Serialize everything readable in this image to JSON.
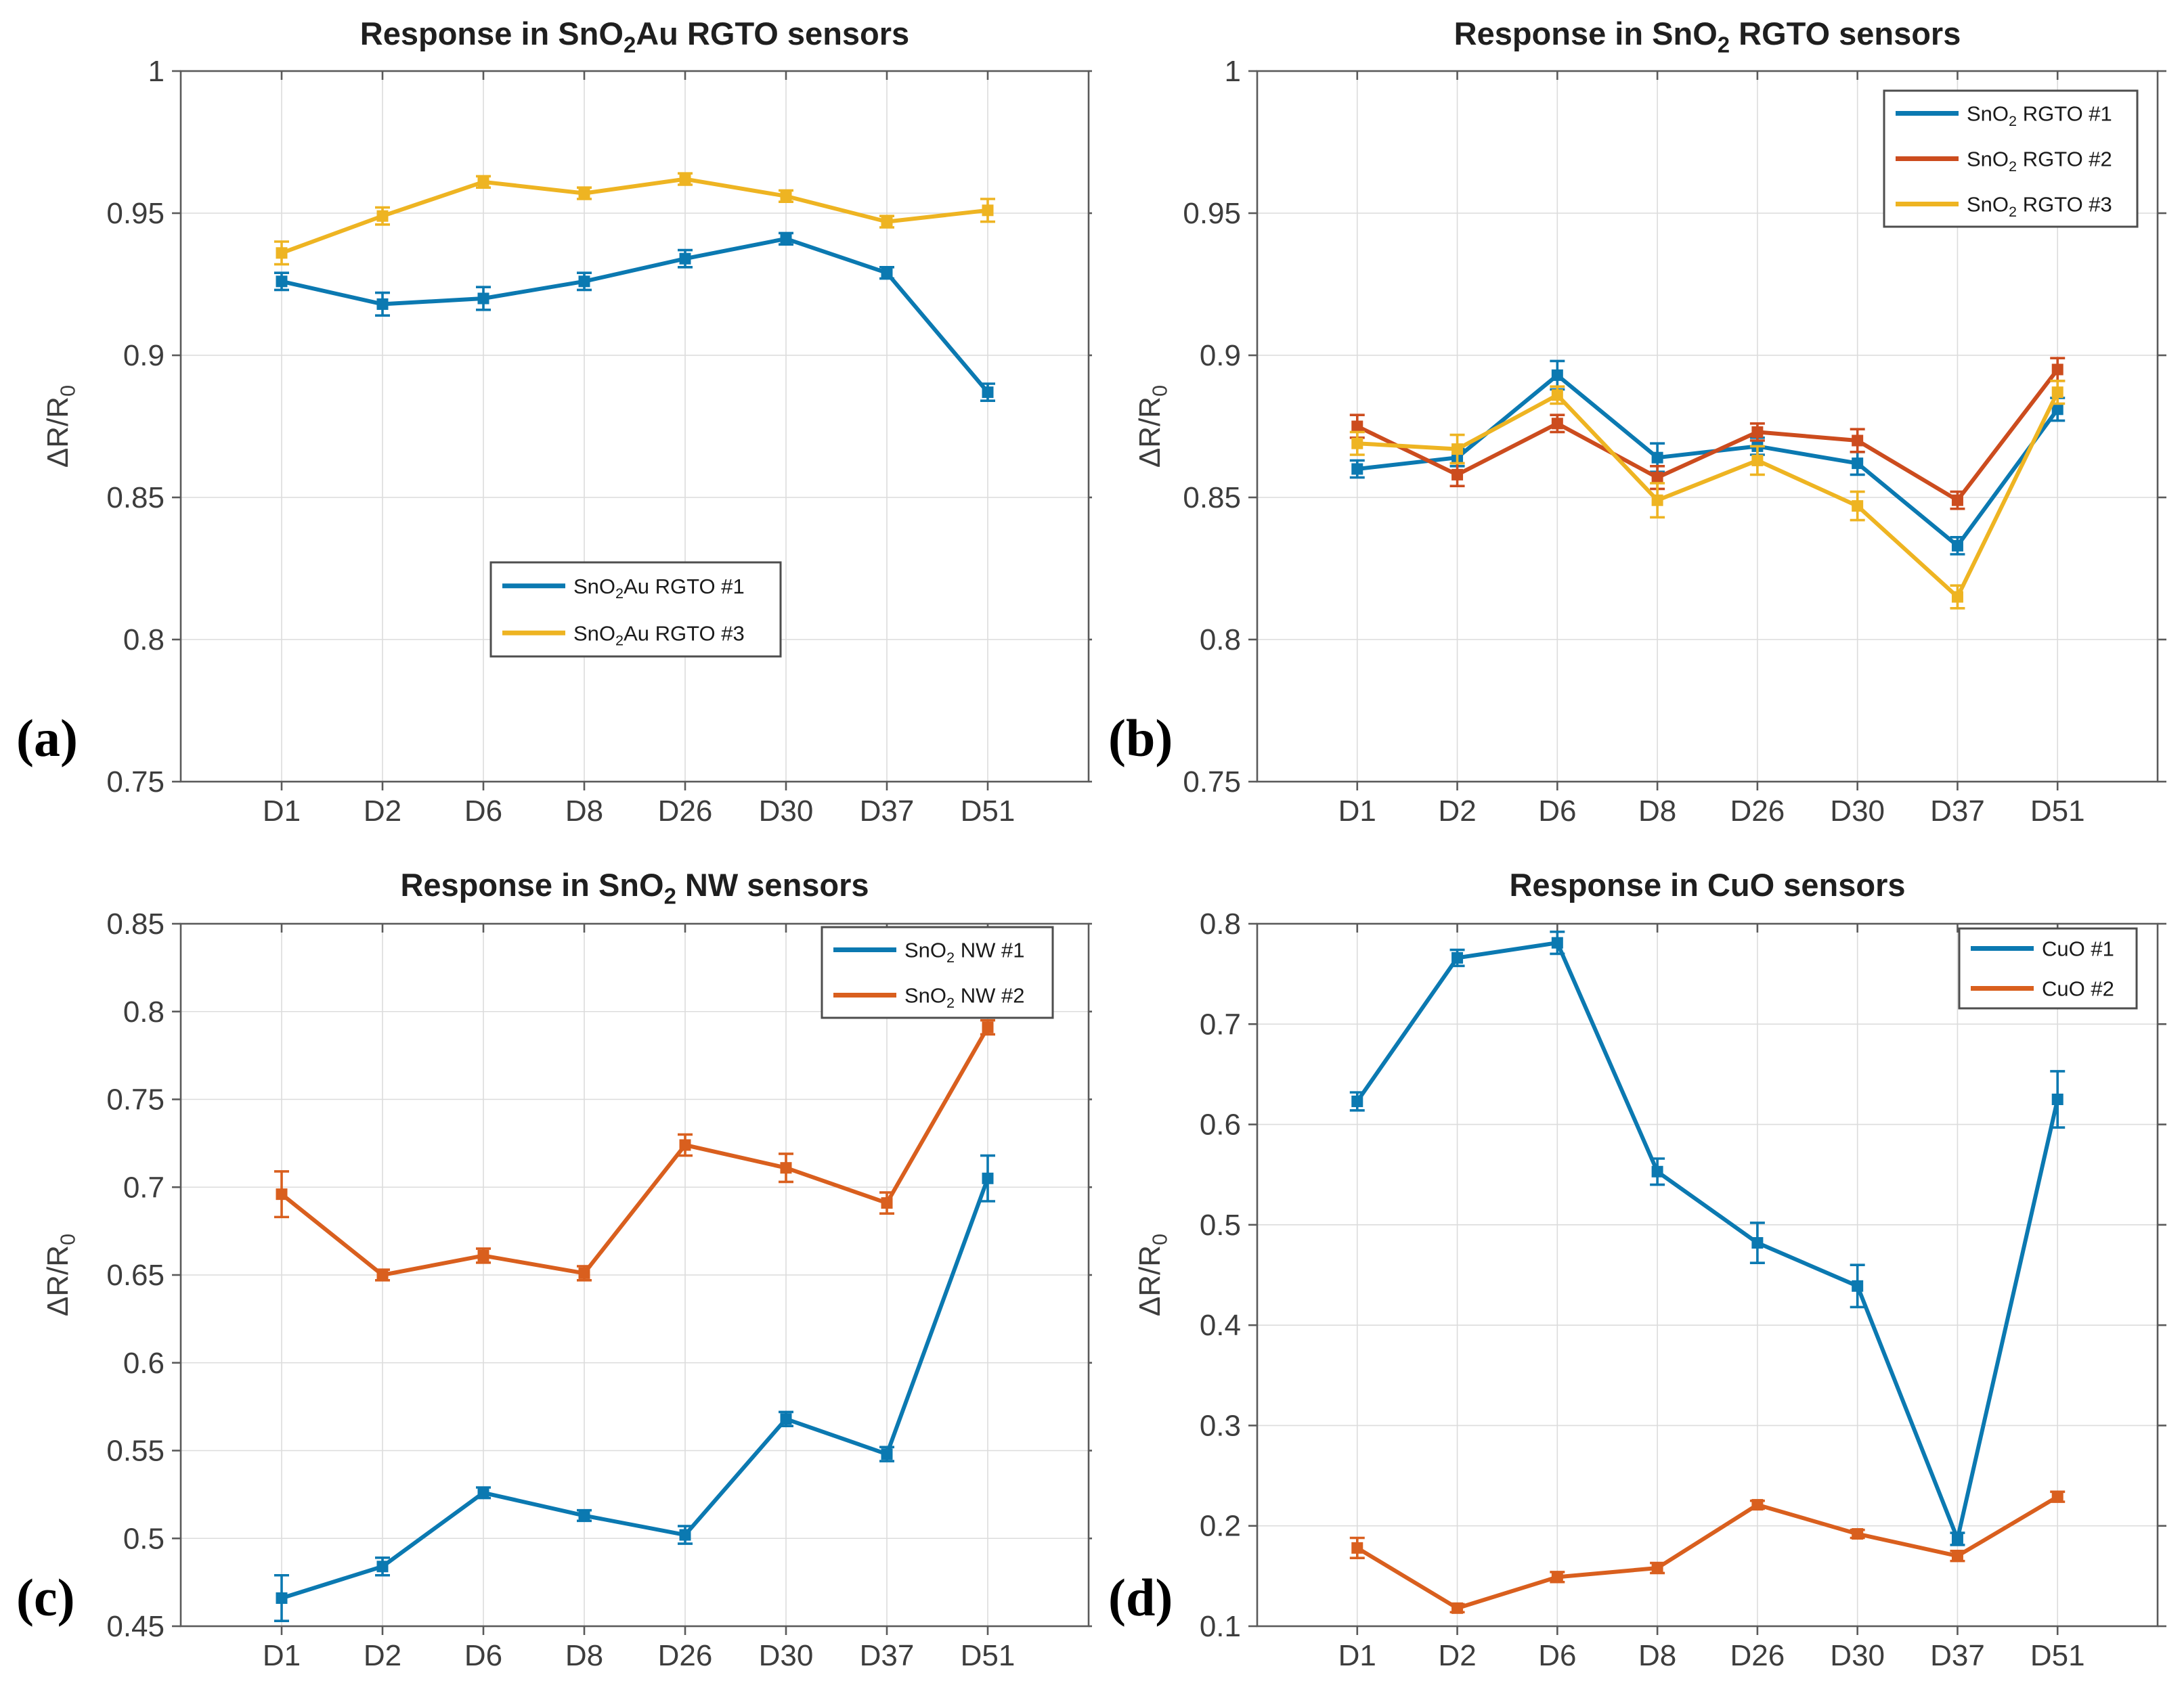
{
  "figure": {
    "background": "#ffffff",
    "text_color": "#3d3d3d",
    "title_color": "#1f1f1f",
    "grid_color": "#dcdcdc",
    "axis_color": "#5a5a5a",
    "legend_border_color": "#4d4d4d"
  },
  "chart_data": [
    {
      "id": "a",
      "panel_label": "(a)",
      "type": "line",
      "title": "Response in SnO₂Au RGTO sensors",
      "title_parts": [
        {
          "t": "Response in SnO"
        },
        {
          "t": "2",
          "sub": true
        },
        {
          "t": "Au RGTO sensors"
        }
      ],
      "ylabel": "ΔR/R₀",
      "ylabel_parts": [
        {
          "t": "ΔR/R"
        },
        {
          "t": "0",
          "sub": true
        }
      ],
      "categories": [
        "D1",
        "D2",
        "D6",
        "D8",
        "D26",
        "D30",
        "D37",
        "D51"
      ],
      "ylim": [
        0.75,
        1
      ],
      "yticks": [
        {
          "v": 0.75,
          "label": "0.75"
        },
        {
          "v": 0.8,
          "label": "0.8"
        },
        {
          "v": 0.85,
          "label": "0.85"
        },
        {
          "v": 0.9,
          "label": "0.9"
        },
        {
          "v": 0.95,
          "label": "0.95"
        },
        {
          "v": 1,
          "label": "1"
        }
      ],
      "grid": true,
      "legend_position": "center-bottom",
      "series": [
        {
          "name": "SnO₂Au RGTO #1",
          "name_parts": [
            {
              "t": "SnO"
            },
            {
              "t": "2",
              "sub": true
            },
            {
              "t": "Au RGTO #1"
            }
          ],
          "color": "#0b79b1",
          "values": [
            0.926,
            0.918,
            0.92,
            0.926,
            0.934,
            0.941,
            0.929,
            0.887
          ],
          "errors": [
            0.003,
            0.004,
            0.004,
            0.003,
            0.003,
            0.002,
            0.002,
            0.003
          ]
        },
        {
          "name": "SnO₂Au RGTO #3",
          "name_parts": [
            {
              "t": "SnO"
            },
            {
              "t": "2",
              "sub": true
            },
            {
              "t": "Au RGTO #3"
            }
          ],
          "color": "#eeb422",
          "values": [
            0.936,
            0.949,
            0.961,
            0.957,
            0.962,
            0.956,
            0.947,
            0.951
          ],
          "errors": [
            0.004,
            0.003,
            0.002,
            0.002,
            0.002,
            0.002,
            0.002,
            0.004
          ]
        }
      ]
    },
    {
      "id": "b",
      "panel_label": "(b)",
      "type": "line",
      "title": "Response in SnO₂ RGTO sensors",
      "title_parts": [
        {
          "t": "Response in SnO"
        },
        {
          "t": "2",
          "sub": true
        },
        {
          "t": " RGTO sensors"
        }
      ],
      "ylabel": "ΔR/R₀",
      "ylabel_parts": [
        {
          "t": "ΔR/R"
        },
        {
          "t": "0",
          "sub": true
        }
      ],
      "categories": [
        "D1",
        "D2",
        "D6",
        "D8",
        "D26",
        "D30",
        "D37",
        "D51"
      ],
      "ylim": [
        0.75,
        1
      ],
      "yticks": [
        {
          "v": 0.75,
          "label": "0.75"
        },
        {
          "v": 0.8,
          "label": "0.8"
        },
        {
          "v": 0.85,
          "label": "0.85"
        },
        {
          "v": 0.9,
          "label": "0.9"
        },
        {
          "v": 0.95,
          "label": "0.95"
        },
        {
          "v": 1,
          "label": "1"
        }
      ],
      "grid": true,
      "legend_position": "top-right",
      "series": [
        {
          "name": "SnO₂ RGTO #1",
          "name_parts": [
            {
              "t": "SnO"
            },
            {
              "t": "2",
              "sub": true
            },
            {
              "t": " RGTO #1"
            }
          ],
          "color": "#0b79b1",
          "values": [
            0.86,
            0.864,
            0.893,
            0.864,
            0.868,
            0.862,
            0.833,
            0.881
          ],
          "errors": [
            0.003,
            0.003,
            0.005,
            0.005,
            0.003,
            0.004,
            0.003,
            0.004
          ]
        },
        {
          "name": "SnO₂ RGTO #2",
          "name_parts": [
            {
              "t": "SnO"
            },
            {
              "t": "2",
              "sub": true
            },
            {
              "t": " RGTO #2"
            }
          ],
          "color": "#cc4c1e",
          "values": [
            0.875,
            0.858,
            0.876,
            0.857,
            0.873,
            0.87,
            0.849,
            0.895
          ],
          "errors": [
            0.004,
            0.004,
            0.003,
            0.004,
            0.003,
            0.004,
            0.003,
            0.004
          ]
        },
        {
          "name": "SnO₂ RGTO #3",
          "name_parts": [
            {
              "t": "SnO"
            },
            {
              "t": "2",
              "sub": true
            },
            {
              "t": " RGTO #3"
            }
          ],
          "color": "#eeb422",
          "values": [
            0.869,
            0.867,
            0.886,
            0.849,
            0.863,
            0.847,
            0.815,
            0.887
          ],
          "errors": [
            0.004,
            0.005,
            0.003,
            0.006,
            0.005,
            0.005,
            0.004,
            0.004
          ]
        }
      ]
    },
    {
      "id": "c",
      "panel_label": "(c)",
      "type": "line",
      "title": "Response in SnO₂ NW sensors",
      "title_parts": [
        {
          "t": "Response in SnO"
        },
        {
          "t": "2",
          "sub": true
        },
        {
          "t": " NW sensors"
        }
      ],
      "ylabel": "ΔR/R₀",
      "ylabel_parts": [
        {
          "t": "ΔR/R"
        },
        {
          "t": "0",
          "sub": true
        }
      ],
      "categories": [
        "D1",
        "D2",
        "D6",
        "D8",
        "D26",
        "D30",
        "D37",
        "D51"
      ],
      "ylim": [
        0.45,
        0.85
      ],
      "yticks": [
        {
          "v": 0.45,
          "label": "0.45"
        },
        {
          "v": 0.5,
          "label": "0.5"
        },
        {
          "v": 0.55,
          "label": "0.55"
        },
        {
          "v": 0.6,
          "label": "0.6"
        },
        {
          "v": 0.65,
          "label": "0.65"
        },
        {
          "v": 0.7,
          "label": "0.7"
        },
        {
          "v": 0.75,
          "label": "0.75"
        },
        {
          "v": 0.8,
          "label": "0.8"
        },
        {
          "v": 0.85,
          "label": "0.85"
        }
      ],
      "grid": true,
      "legend_position": "top-right",
      "series": [
        {
          "name": "SnO₂ NW #1",
          "name_parts": [
            {
              "t": "SnO"
            },
            {
              "t": "2",
              "sub": true
            },
            {
              "t": " NW #1"
            }
          ],
          "color": "#0b79b1",
          "values": [
            0.466,
            0.484,
            0.526,
            0.513,
            0.502,
            0.568,
            0.548,
            0.705
          ],
          "errors": [
            0.013,
            0.005,
            0.003,
            0.003,
            0.005,
            0.004,
            0.004,
            0.013
          ]
        },
        {
          "name": "SnO₂ NW #2",
          "name_parts": [
            {
              "t": "SnO"
            },
            {
              "t": "2",
              "sub": true
            },
            {
              "t": " NW #2"
            }
          ],
          "color": "#d95f1e",
          "values": [
            0.696,
            0.65,
            0.661,
            0.651,
            0.724,
            0.711,
            0.691,
            0.791
          ],
          "errors": [
            0.013,
            0.003,
            0.004,
            0.004,
            0.006,
            0.008,
            0.006,
            0.004
          ]
        }
      ]
    },
    {
      "id": "d",
      "panel_label": "(d)",
      "type": "line",
      "title": "Response in CuO sensors",
      "title_parts": [
        {
          "t": "Response in CuO sensors"
        }
      ],
      "ylabel": "ΔR/R₀",
      "ylabel_parts": [
        {
          "t": "ΔR/R"
        },
        {
          "t": "0",
          "sub": true
        }
      ],
      "categories": [
        "D1",
        "D2",
        "D6",
        "D8",
        "D26",
        "D30",
        "D37",
        "D51"
      ],
      "ylim": [
        0.1,
        0.8
      ],
      "yticks": [
        {
          "v": 0.1,
          "label": "0.1"
        },
        {
          "v": 0.2,
          "label": "0.2"
        },
        {
          "v": 0.3,
          "label": "0.3"
        },
        {
          "v": 0.4,
          "label": "0.4"
        },
        {
          "v": 0.5,
          "label": "0.5"
        },
        {
          "v": 0.6,
          "label": "0.6"
        },
        {
          "v": 0.7,
          "label": "0.7"
        },
        {
          "v": 0.8,
          "label": "0.8"
        }
      ],
      "grid": true,
      "legend_position": "top-right",
      "series": [
        {
          "name": "CuO #1",
          "name_parts": [
            {
              "t": "CuO #1"
            }
          ],
          "color": "#0b79b1",
          "values": [
            0.623,
            0.766,
            0.781,
            0.553,
            0.482,
            0.439,
            0.187,
            0.625
          ],
          "errors": [
            0.009,
            0.008,
            0.011,
            0.013,
            0.02,
            0.021,
            0.006,
            0.028
          ]
        },
        {
          "name": "CuO #2",
          "name_parts": [
            {
              "t": "CuO #2"
            }
          ],
          "color": "#d95f1e",
          "values": [
            0.178,
            0.118,
            0.149,
            0.158,
            0.221,
            0.192,
            0.17,
            0.229
          ],
          "errors": [
            0.01,
            0.004,
            0.005,
            0.005,
            0.004,
            0.004,
            0.005,
            0.005
          ]
        }
      ]
    }
  ]
}
